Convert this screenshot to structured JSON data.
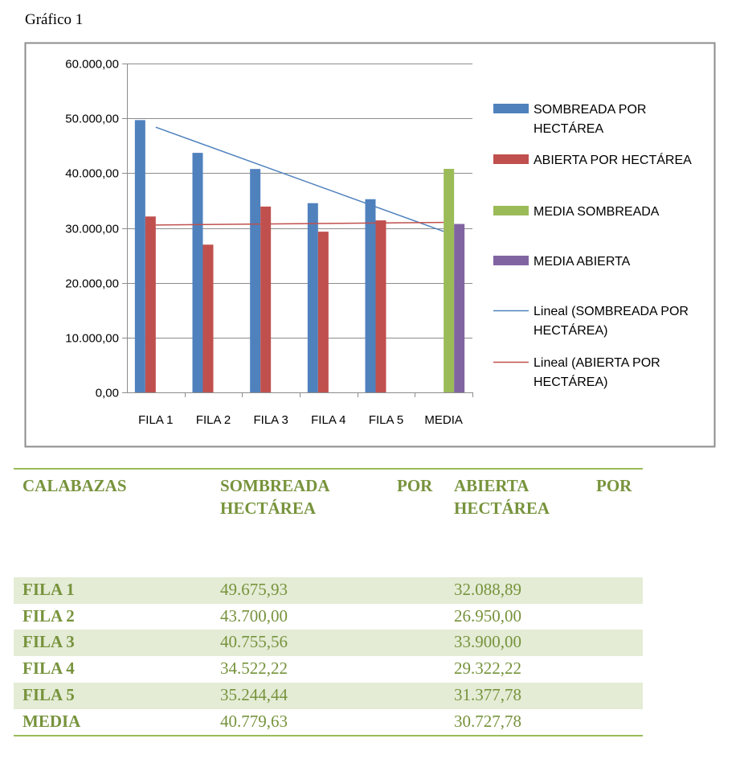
{
  "caption": "Gráfico 1",
  "chart_data": {
    "type": "bar",
    "title": "",
    "categories": [
      "FILA 1",
      "FILA 2",
      "FILA 3",
      "FILA 4",
      "FILA 5",
      "MEDIA"
    ],
    "series": [
      {
        "name": "SOMBREADA POR HECTÁREA",
        "legend_lines": [
          "SOMBREADA POR",
          "HECTÁREA"
        ],
        "color": "#4f81bd",
        "values": [
          49675.93,
          43700.0,
          40755.56,
          34522.22,
          35244.44,
          null
        ]
      },
      {
        "name": "ABIERTA POR HECTÁREA",
        "legend_lines": [
          "ABIERTA POR HECTÁREA"
        ],
        "color": "#c0504d",
        "values": [
          32088.89,
          26950.0,
          33900.0,
          29322.22,
          31377.78,
          null
        ]
      },
      {
        "name": "MEDIA SOMBREADA",
        "legend_lines": [
          "MEDIA SOMBREADA"
        ],
        "color": "#9bbb59",
        "values": [
          null,
          null,
          null,
          null,
          null,
          40779.63
        ]
      },
      {
        "name": "MEDIA ABIERTA",
        "legend_lines": [
          "MEDIA ABIERTA"
        ],
        "color": "#8064a2",
        "values": [
          null,
          null,
          null,
          null,
          null,
          30727.78
        ]
      }
    ],
    "trendlines": [
      {
        "name": "Lineal (SOMBREADA POR HECTÁREA)",
        "legend_lines": [
          "Lineal (SOMBREADA POR",
          "HECTÁREA)"
        ],
        "of_series": 0,
        "color": "#4f81bd"
      },
      {
        "name": "Lineal (ABIERTA POR HECTÁREA)",
        "legend_lines": [
          "Lineal (ABIERTA POR",
          "HECTÁREA)"
        ],
        "of_series": 1,
        "color": "#c0504d"
      }
    ],
    "yticks": [
      "0,00",
      "10.000,00",
      "20.000,00",
      "30.000,00",
      "40.000,00",
      "50.000,00",
      "60.000,00"
    ],
    "ylim": [
      0,
      60000
    ],
    "xlabel": "",
    "ylabel": "",
    "grid": true,
    "legend": "right"
  },
  "table": {
    "headers": [
      {
        "line1": "CALABAZAS",
        "line2": ""
      },
      {
        "line1": "SOMBREADA",
        "line1b": "POR",
        "line2": "HECTÁREA"
      },
      {
        "line1": "ABIERTA",
        "line1b": "POR",
        "line2": "HECTÁREA"
      }
    ],
    "rows": [
      {
        "label": "FILA 1",
        "sombreada": "49.675,93",
        "abierta": "32.088,89"
      },
      {
        "label": "FILA 2",
        "sombreada": "43.700,00",
        "abierta": "26.950,00"
      },
      {
        "label": "FILA 3",
        "sombreada": "40.755,56",
        "abierta": "33.900,00"
      },
      {
        "label": "FILA 4",
        "sombreada": "34.522,22",
        "abierta": "29.322,22"
      },
      {
        "label": "FILA 5",
        "sombreada": "35.244,44",
        "abierta": "31.377,78"
      },
      {
        "label": "MEDIA",
        "sombreada": "40.779,63",
        "abierta": "30.727,78"
      }
    ]
  }
}
